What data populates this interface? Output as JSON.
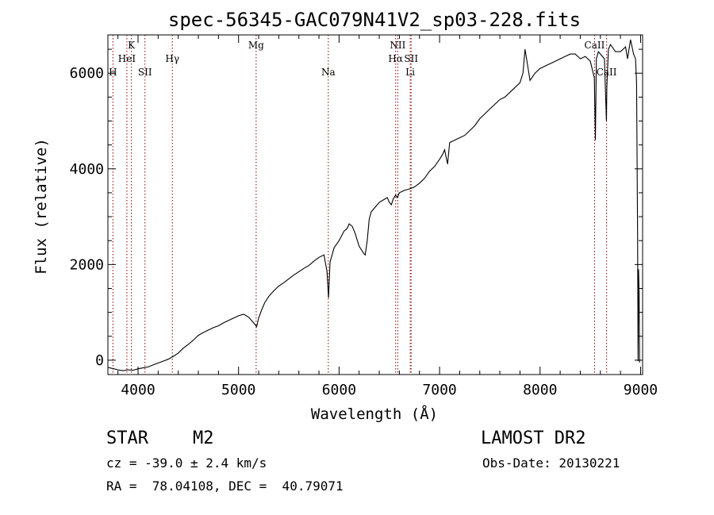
{
  "chart_data": {
    "type": "line",
    "title": "spec-56345-GAC079N41V2_sp03-228.fits",
    "xlabel": "Wavelength (Å)",
    "ylabel": "Flux (relative)",
    "xlim": [
      3700,
      9020
    ],
    "ylim": [
      -300,
      6800
    ],
    "xticks": [
      4000,
      5000,
      6000,
      7000,
      8000,
      9000
    ],
    "xtick_labels": [
      "4000",
      "5000",
      "6000",
      "7000",
      "8000",
      "9000"
    ],
    "yticks": [
      0,
      2000,
      4000,
      6000
    ],
    "ytick_labels": [
      "0",
      "2000",
      "4000",
      "6000"
    ],
    "grid": false,
    "series": [
      {
        "color": "#000000",
        "x": [
          3700,
          3760,
          3800,
          3850,
          3900,
          3950,
          4000,
          4050,
          4100,
          4150,
          4200,
          4250,
          4300,
          4350,
          4400,
          4450,
          4500,
          4550,
          4600,
          4650,
          4700,
          4750,
          4800,
          4850,
          4900,
          4950,
          5000,
          5050,
          5100,
          5150,
          5180,
          5200,
          5230,
          5260,
          5300,
          5350,
          5400,
          5450,
          5500,
          5550,
          5600,
          5650,
          5700,
          5750,
          5800,
          5850,
          5880,
          5895,
          5910,
          5950,
          6000,
          6050,
          6080,
          6100,
          6130,
          6160,
          6200,
          6240,
          6260,
          6280,
          6300,
          6320,
          6360,
          6400,
          6440,
          6480,
          6500,
          6520,
          6540,
          6563,
          6580,
          6600,
          6650,
          6700,
          6750,
          6800,
          6850,
          6900,
          6950,
          7000,
          7030,
          7050,
          7080,
          7100,
          7150,
          7200,
          7250,
          7300,
          7350,
          7400,
          7450,
          7500,
          7550,
          7600,
          7650,
          7700,
          7750,
          7800,
          7830,
          7850,
          7900,
          7950,
          8000,
          8050,
          8100,
          8150,
          8200,
          8250,
          8300,
          8350,
          8400,
          8450,
          8500,
          8540,
          8550,
          8560,
          8580,
          8600,
          8640,
          8660,
          8664,
          8680,
          8700,
          8750,
          8800,
          8850,
          8870,
          8900,
          8930,
          8950,
          8960,
          8970,
          8975,
          8980,
          8985,
          8990
        ],
        "values": [
          -150,
          -180,
          -200,
          -220,
          -200,
          -210,
          -180,
          -160,
          -140,
          -100,
          -60,
          -20,
          20,
          80,
          150,
          250,
          330,
          420,
          520,
          580,
          630,
          680,
          720,
          780,
          830,
          880,
          930,
          960,
          900,
          780,
          700,
          880,
          1050,
          1200,
          1330,
          1450,
          1550,
          1620,
          1700,
          1780,
          1850,
          1920,
          1980,
          2070,
          2150,
          2200,
          1850,
          1300,
          2050,
          2350,
          2500,
          2700,
          2750,
          2850,
          2800,
          2650,
          2380,
          2250,
          2200,
          2500,
          2950,
          3100,
          3200,
          3300,
          3350,
          3400,
          3300,
          3250,
          3380,
          3450,
          3400,
          3500,
          3550,
          3580,
          3620,
          3700,
          3800,
          3950,
          4050,
          4200,
          4300,
          4400,
          4100,
          4550,
          4600,
          4650,
          4700,
          4800,
          4900,
          5050,
          5150,
          5250,
          5350,
          5450,
          5500,
          5600,
          5700,
          5800,
          6000,
          6500,
          5850,
          6000,
          6100,
          6150,
          6200,
          6250,
          6300,
          6350,
          6400,
          6400,
          6300,
          6350,
          6250,
          5900,
          4600,
          6300,
          6450,
          6400,
          6300,
          5000,
          5700,
          6500,
          6600,
          6450,
          6450,
          6550,
          6300,
          6700,
          6400,
          6300,
          5800,
          2600,
          -20,
          1900,
          1400,
          -50
        ]
      }
    ],
    "line_markers": [
      {
        "label": "H",
        "x": 3750,
        "row": 3
      },
      {
        "label": "K",
        "x": 3934,
        "row": 1
      },
      {
        "label": "HeI",
        "x": 3889,
        "row": 2
      },
      {
        "label": "SII",
        "x": 4069,
        "row": 3
      },
      {
        "label": "Hγ",
        "x": 4341,
        "row": 2
      },
      {
        "label": "Mg",
        "x": 5175,
        "row": 1
      },
      {
        "label": "Na",
        "x": 5893,
        "row": 3
      },
      {
        "label": "NII",
        "x": 6584,
        "row": 1
      },
      {
        "label": "Hα",
        "x": 6563,
        "row": 2
      },
      {
        "label": "SII",
        "x": 6717,
        "row": 2
      },
      {
        "label": "Li",
        "x": 6708,
        "row": 3
      },
      {
        "label": "CaII",
        "x": 8542,
        "row": 1
      },
      {
        "label": "CaII",
        "x": 8662,
        "row": 3
      }
    ],
    "marker_color": "#8b0000"
  },
  "info": {
    "object_class": "STAR",
    "subclass": "M2",
    "survey": "LAMOST DR2",
    "cz_text": "cz = -39.0 ± 2.4 km/s",
    "obs_date_text": "Obs-Date: 20130221",
    "radec_text": "RA =  78.04108, DEC =  40.79071"
  }
}
